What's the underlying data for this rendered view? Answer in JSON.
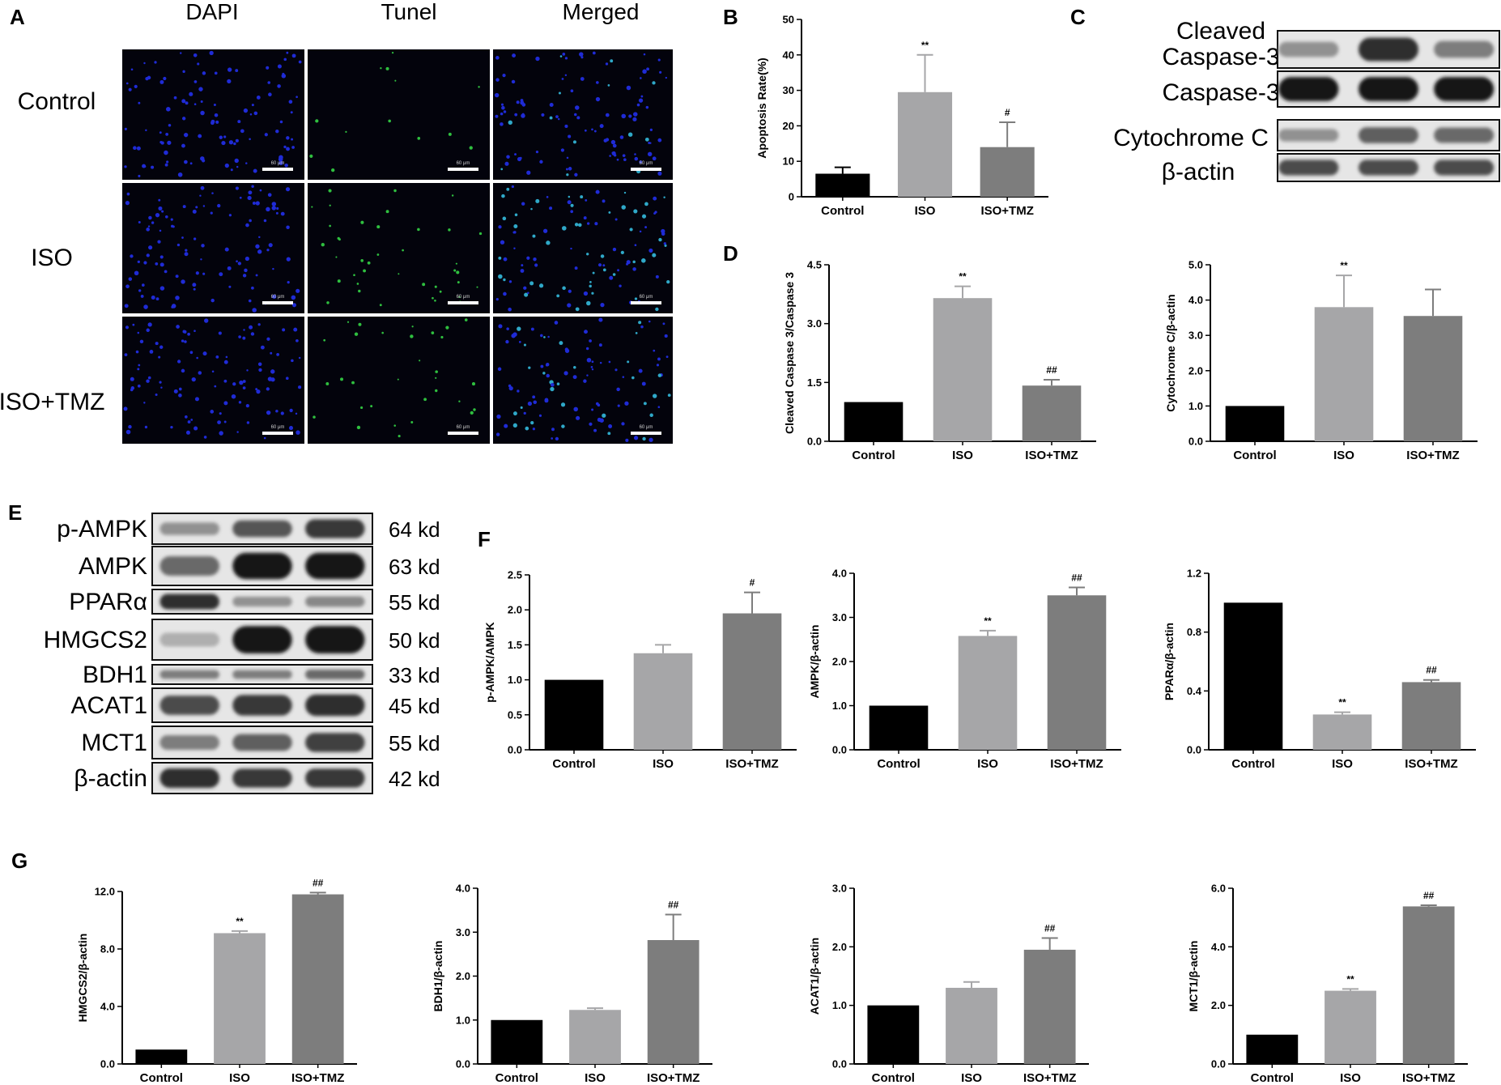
{
  "figure": {
    "panel_labels": [
      "A",
      "B",
      "C",
      "D",
      "E",
      "F",
      "G"
    ],
    "micro": {
      "columns": [
        "DAPI",
        "Tunel",
        "Merged"
      ],
      "rows": [
        "Control",
        "ISO",
        "ISO+TMZ"
      ],
      "scale_label": "60 μm"
    },
    "blot_c": {
      "labels": [
        "Cleaved\nCaspase-3",
        "Caspase-3",
        "Cytochrome C",
        "β-actin"
      ],
      "intensity": [
        [
          0.35,
          0.85,
          0.45
        ],
        [
          0.95,
          0.95,
          0.95
        ],
        [
          0.35,
          0.6,
          0.55
        ],
        [
          0.7,
          0.7,
          0.7
        ]
      ]
    },
    "blot_e": {
      "labels": [
        "p-AMPK",
        "AMPK",
        "PPARα",
        "HMGCS2",
        "BDH1",
        "ACAT1",
        "MCT1",
        "β-actin"
      ],
      "kd": [
        "64 kd",
        "63 kd",
        "55 kd",
        "50 kd",
        "33 kd",
        "45 kd",
        "55 kd",
        "42 kd"
      ],
      "intensity": [
        [
          0.35,
          0.65,
          0.8
        ],
        [
          0.55,
          0.95,
          0.95
        ],
        [
          0.85,
          0.35,
          0.4
        ],
        [
          0.2,
          0.95,
          0.95
        ],
        [
          0.45,
          0.45,
          0.55
        ],
        [
          0.7,
          0.8,
          0.85
        ],
        [
          0.45,
          0.6,
          0.75
        ],
        [
          0.85,
          0.8,
          0.8
        ]
      ]
    }
  },
  "colors": {
    "control": "#000000",
    "iso": "#a6a6a8",
    "tmz": "#7d7d7d"
  },
  "chart_data": [
    {
      "id": "B",
      "type": "bar",
      "categories": [
        "Control",
        "ISO",
        "ISO+TMZ"
      ],
      "values": [
        6.5,
        29.5,
        14
      ],
      "errors": [
        1.8,
        10.5,
        7
      ],
      "sig": [
        "",
        "**",
        "#"
      ],
      "ylabel": "Apoptosis Rate(%)",
      "ylim": [
        0,
        50
      ],
      "ticks": [
        "0",
        "10",
        "20",
        "30",
        "40",
        "50"
      ]
    },
    {
      "id": "D1",
      "type": "bar",
      "categories": [
        "Control",
        "ISO",
        "ISO+TMZ"
      ],
      "values": [
        1.0,
        3.65,
        1.42
      ],
      "errors": [
        0,
        0.3,
        0.15
      ],
      "sig": [
        "",
        "**",
        "##"
      ],
      "ylabel": "Cleaved Caspase 3/Caspase 3",
      "ylim": [
        0,
        4.5
      ],
      "ticks": [
        "0.0",
        "1.5",
        "3.0",
        "4.5"
      ]
    },
    {
      "id": "D2",
      "type": "bar",
      "categories": [
        "Control",
        "ISO",
        "ISO+TMZ"
      ],
      "values": [
        1.0,
        3.8,
        3.55
      ],
      "errors": [
        0,
        0.9,
        0.75
      ],
      "sig": [
        "",
        "**",
        ""
      ],
      "ylabel": "Cytochrome C/β-actin",
      "ylim": [
        0,
        5
      ],
      "ticks": [
        "0.0",
        "1.0",
        "2.0",
        "3.0",
        "4.0",
        "5.0"
      ]
    },
    {
      "id": "F1",
      "type": "bar",
      "categories": [
        "Control",
        "ISO",
        "ISO+TMZ"
      ],
      "values": [
        1.0,
        1.38,
        1.95
      ],
      "errors": [
        0,
        0.12,
        0.3
      ],
      "sig": [
        "",
        "",
        "#"
      ],
      "ylabel": "p-AMPK/AMPK",
      "ylim": [
        0,
        2.5
      ],
      "ticks": [
        "0.0",
        "0.5",
        "1.0",
        "1.5",
        "2.0",
        "2.5"
      ]
    },
    {
      "id": "F2",
      "type": "bar",
      "categories": [
        "Control",
        "ISO",
        "ISO+TMZ"
      ],
      "values": [
        1.0,
        2.58,
        3.5
      ],
      "errors": [
        0,
        0.12,
        0.18
      ],
      "sig": [
        "",
        "**",
        "##"
      ],
      "ylabel": "AMPK/β-actin",
      "ylim": [
        0,
        4
      ],
      "ticks": [
        "0.0",
        "1.0",
        "2.0",
        "3.0",
        "4.0"
      ]
    },
    {
      "id": "F3",
      "type": "bar",
      "categories": [
        "Control",
        "ISO",
        "ISO+TMZ"
      ],
      "values": [
        1.0,
        0.24,
        0.46
      ],
      "errors": [
        0,
        0.015,
        0.015
      ],
      "sig": [
        "",
        "**",
        "##"
      ],
      "ylabel": "PPARα/β-actin",
      "ylim": [
        0,
        1.2
      ],
      "ticks": [
        "0.0",
        "0.4",
        "0.8",
        "1.2"
      ]
    },
    {
      "id": "G1",
      "type": "bar",
      "categories": [
        "Control",
        "ISO",
        "ISO+TMZ"
      ],
      "values": [
        1.0,
        9.1,
        11.8
      ],
      "errors": [
        0,
        0.15,
        0.12
      ],
      "sig": [
        "",
        "**",
        "##"
      ],
      "ylabel": "HMGCS2/β-actin",
      "ylim": [
        0,
        12
      ],
      "ticks": [
        "0.0",
        "4.0",
        "8.0",
        "12.0"
      ]
    },
    {
      "id": "G2",
      "type": "bar",
      "categories": [
        "Control",
        "ISO",
        "ISO+TMZ"
      ],
      "values": [
        1.0,
        1.23,
        2.82
      ],
      "errors": [
        0,
        0.04,
        0.58
      ],
      "sig": [
        "",
        "",
        "##"
      ],
      "ylabel": "BDH1/β-actin",
      "ylim": [
        0,
        4
      ],
      "ticks": [
        "0.0",
        "1.0",
        "2.0",
        "3.0",
        "4.0"
      ]
    },
    {
      "id": "G3",
      "type": "bar",
      "categories": [
        "Control",
        "ISO",
        "ISO+TMZ"
      ],
      "values": [
        1.0,
        1.3,
        1.95
      ],
      "errors": [
        0,
        0.1,
        0.2
      ],
      "sig": [
        "",
        "",
        "##"
      ],
      "ylabel": "ACAT1/β-actin",
      "ylim": [
        0,
        3
      ],
      "ticks": [
        "0.0",
        "1.0",
        "2.0",
        "3.0"
      ]
    },
    {
      "id": "G4",
      "type": "bar",
      "categories": [
        "Control",
        "ISO",
        "ISO+TMZ"
      ],
      "values": [
        1.0,
        2.5,
        5.38
      ],
      "errors": [
        0,
        0.06,
        0.04
      ],
      "sig": [
        "",
        "**",
        "##"
      ],
      "ylabel": "MCT1/β-actin",
      "ylim": [
        0,
        6
      ],
      "ticks": [
        "0.0",
        "2.0",
        "4.0",
        "6.0"
      ]
    }
  ]
}
